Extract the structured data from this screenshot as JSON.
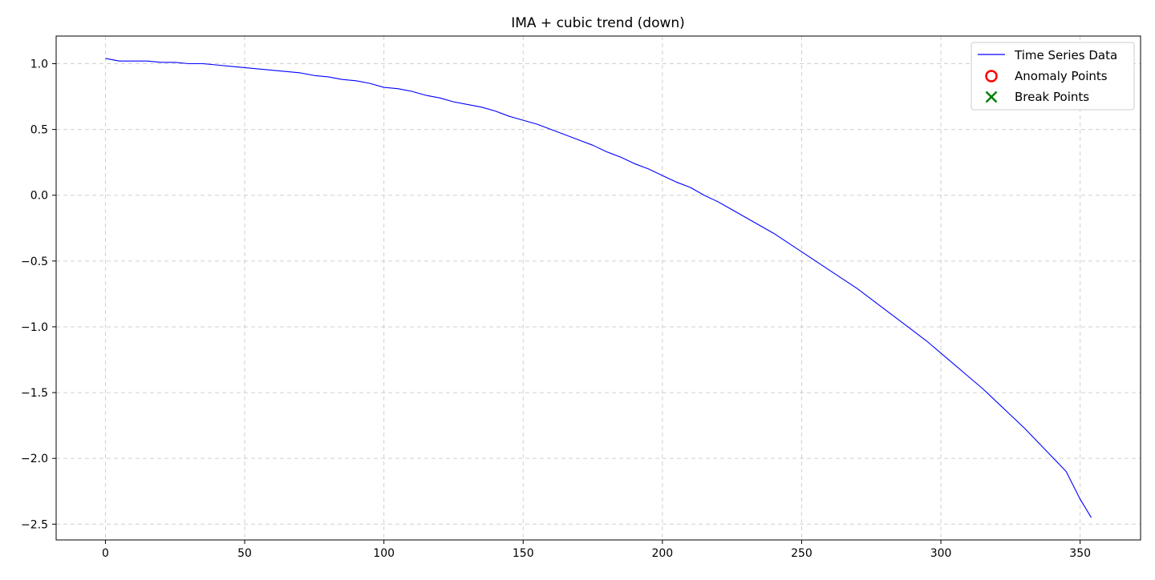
{
  "chart_data": {
    "type": "line",
    "title": "IMA + cubic trend (down)",
    "xlabel": "",
    "ylabel": "",
    "xlim": [
      -17.7,
      371.7
    ],
    "ylim": [
      -2.62,
      1.21
    ],
    "x_ticks": [
      0,
      50,
      100,
      150,
      200,
      250,
      300,
      350
    ],
    "x_tick_labels": [
      "0",
      "50",
      "100",
      "150",
      "200",
      "250",
      "300",
      "350"
    ],
    "y_ticks": [
      1.0,
      0.5,
      0.0,
      -0.5,
      -1.0,
      -1.5,
      -2.0,
      -2.5
    ],
    "y_tick_labels": [
      "1.0",
      "0.5",
      "0.0",
      "−0.5",
      "−1.0",
      "−1.5",
      "−2.0",
      "−2.5"
    ],
    "grid": true,
    "legend_position": "top-right",
    "series": [
      {
        "name": "Time Series Data",
        "kind": "line",
        "color": "#0000ff",
        "x": [
          0,
          5,
          10,
          15,
          20,
          25,
          30,
          35,
          40,
          45,
          50,
          55,
          60,
          65,
          70,
          75,
          80,
          85,
          90,
          95,
          100,
          105,
          110,
          115,
          120,
          125,
          130,
          135,
          140,
          145,
          150,
          155,
          160,
          165,
          170,
          175,
          180,
          185,
          190,
          195,
          200,
          205,
          210,
          215,
          220,
          225,
          230,
          235,
          240,
          245,
          250,
          255,
          260,
          265,
          270,
          275,
          280,
          285,
          290,
          295,
          300,
          305,
          310,
          315,
          320,
          325,
          330,
          335,
          340,
          345,
          350,
          354
        ],
        "y": [
          1.04,
          1.02,
          1.02,
          1.02,
          1.01,
          1.01,
          1.0,
          1.0,
          0.99,
          0.98,
          0.97,
          0.96,
          0.95,
          0.94,
          0.93,
          0.91,
          0.9,
          0.88,
          0.87,
          0.85,
          0.82,
          0.81,
          0.79,
          0.76,
          0.74,
          0.71,
          0.69,
          0.67,
          0.64,
          0.6,
          0.57,
          0.54,
          0.5,
          0.46,
          0.42,
          0.38,
          0.33,
          0.29,
          0.24,
          0.2,
          0.15,
          0.1,
          0.06,
          0.0,
          -0.05,
          -0.11,
          -0.17,
          -0.23,
          -0.29,
          -0.36,
          -0.43,
          -0.5,
          -0.57,
          -0.64,
          -0.71,
          -0.79,
          -0.87,
          -0.95,
          -1.03,
          -1.11,
          -1.2,
          -1.29,
          -1.38,
          -1.47,
          -1.57,
          -1.67,
          -1.77,
          -1.88,
          -1.99,
          -2.1,
          -2.31,
          -2.45
        ]
      },
      {
        "name": "Anomaly Points",
        "kind": "marker-circle",
        "color": "#ff0000",
        "x": [],
        "y": []
      },
      {
        "name": "Break Points",
        "kind": "marker-x",
        "color": "#008000",
        "x": [],
        "y": []
      }
    ]
  }
}
